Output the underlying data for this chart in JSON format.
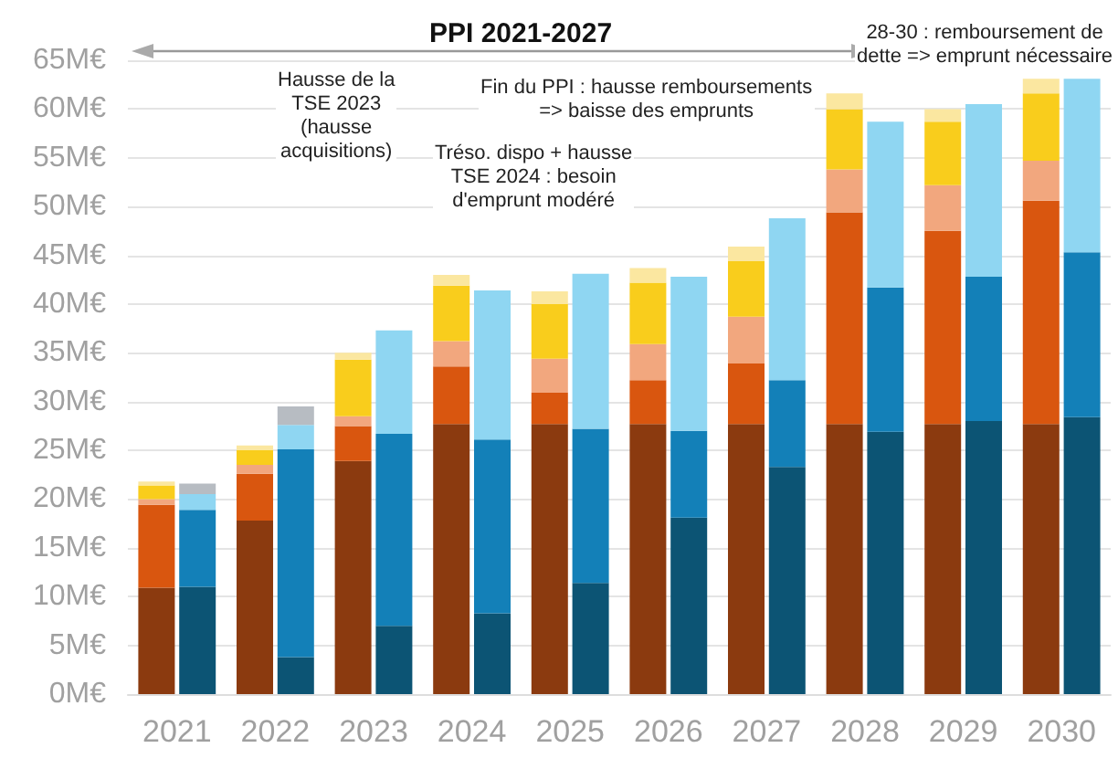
{
  "chart_data": [
    {
      "type": "bar",
      "stacked": true,
      "title": "PPI 2021-2027",
      "annotations": [
        "Hausse de la\nTSE 2023\n(hausse\nacquisitions)",
        "Tréso. dispo + hausse\nTSE 2024 : besoin\nd'emprunt modéré",
        "Fin du PPI : hausse remboursements\n=> baisse des emprunts",
        "28-30 : remboursement de\ndette => emprunt nécessaire"
      ],
      "categories": [
        "2021",
        "2022",
        "2023",
        "2024",
        "2025",
        "2026",
        "2027",
        "2028",
        "2029",
        "2030"
      ],
      "series": [
        {
          "color": "#8b3a0f",
          "values": [
            10.9,
            17.8,
            23.9,
            27.7,
            27.7,
            27.7,
            27.7,
            27.7,
            27.7,
            27.7
          ]
        },
        {
          "color": "#d9560f",
          "values": [
            8.5,
            4.8,
            3.6,
            5.9,
            3.2,
            4.5,
            6.2,
            21.7,
            19.8,
            22.9
          ]
        },
        {
          "color": "#f2a77e",
          "values": [
            0.6,
            0.9,
            1.0,
            2.6,
            3.5,
            3.7,
            4.8,
            4.4,
            4.7,
            4.1
          ]
        },
        {
          "color": "#f9cd1c",
          "values": [
            1.4,
            1.5,
            5.8,
            5.7,
            5.6,
            6.3,
            5.7,
            6.2,
            6.5,
            6.9
          ]
        },
        {
          "color": "#fbe7a0",
          "values": [
            0.4,
            0.5,
            0.7,
            1.1,
            1.3,
            1.5,
            1.5,
            1.6,
            1.3,
            1.5
          ]
        }
      ],
      "ylim": [
        0,
        65
      ],
      "yticks": [
        {
          "value": 0,
          "label": "0M€"
        },
        {
          "value": 5,
          "label": "5M€"
        },
        {
          "value": 10,
          "label": "10M€"
        },
        {
          "value": 15,
          "label": "15M€"
        },
        {
          "value": 20,
          "label": "20M€"
        },
        {
          "value": 25,
          "label": "25M€"
        },
        {
          "value": 30,
          "label": "30M€"
        },
        {
          "value": 35,
          "label": "35M€"
        },
        {
          "value": 40,
          "label": "40M€"
        },
        {
          "value": 45,
          "label": "45M€"
        },
        {
          "value": 50,
          "label": "50M€"
        },
        {
          "value": 55,
          "label": "55M€"
        },
        {
          "value": 60,
          "label": "60M€"
        },
        {
          "value": 65,
          "label": "65M€"
        }
      ],
      "grid": "y"
    },
    {
      "type": "bar",
      "stacked": true,
      "categories": [
        "2021",
        "2022",
        "2023",
        "2024",
        "2025",
        "2026",
        "2027",
        "2028",
        "2029",
        "2030"
      ],
      "series": [
        {
          "color": "#0c5474",
          "values": [
            11.0,
            3.8,
            7.0,
            8.3,
            11.4,
            18.1,
            23.3,
            26.9,
            28.0,
            28.4
          ]
        },
        {
          "color": "#1380b8",
          "values": [
            7.9,
            21.3,
            19.7,
            17.8,
            15.8,
            8.9,
            8.9,
            14.8,
            14.8,
            16.9
          ]
        },
        {
          "color": "#8fd6f2",
          "values": [
            1.6,
            2.5,
            10.6,
            15.3,
            15.9,
            15.8,
            16.6,
            17.0,
            17.7,
            17.8
          ]
        },
        {
          "color": "#b7bcc2",
          "values": [
            1.1,
            1.9,
            null,
            null,
            null,
            null,
            null,
            null,
            null,
            null
          ]
        }
      ],
      "ylim": [
        0,
        65
      ],
      "tick_labels": false
    }
  ]
}
